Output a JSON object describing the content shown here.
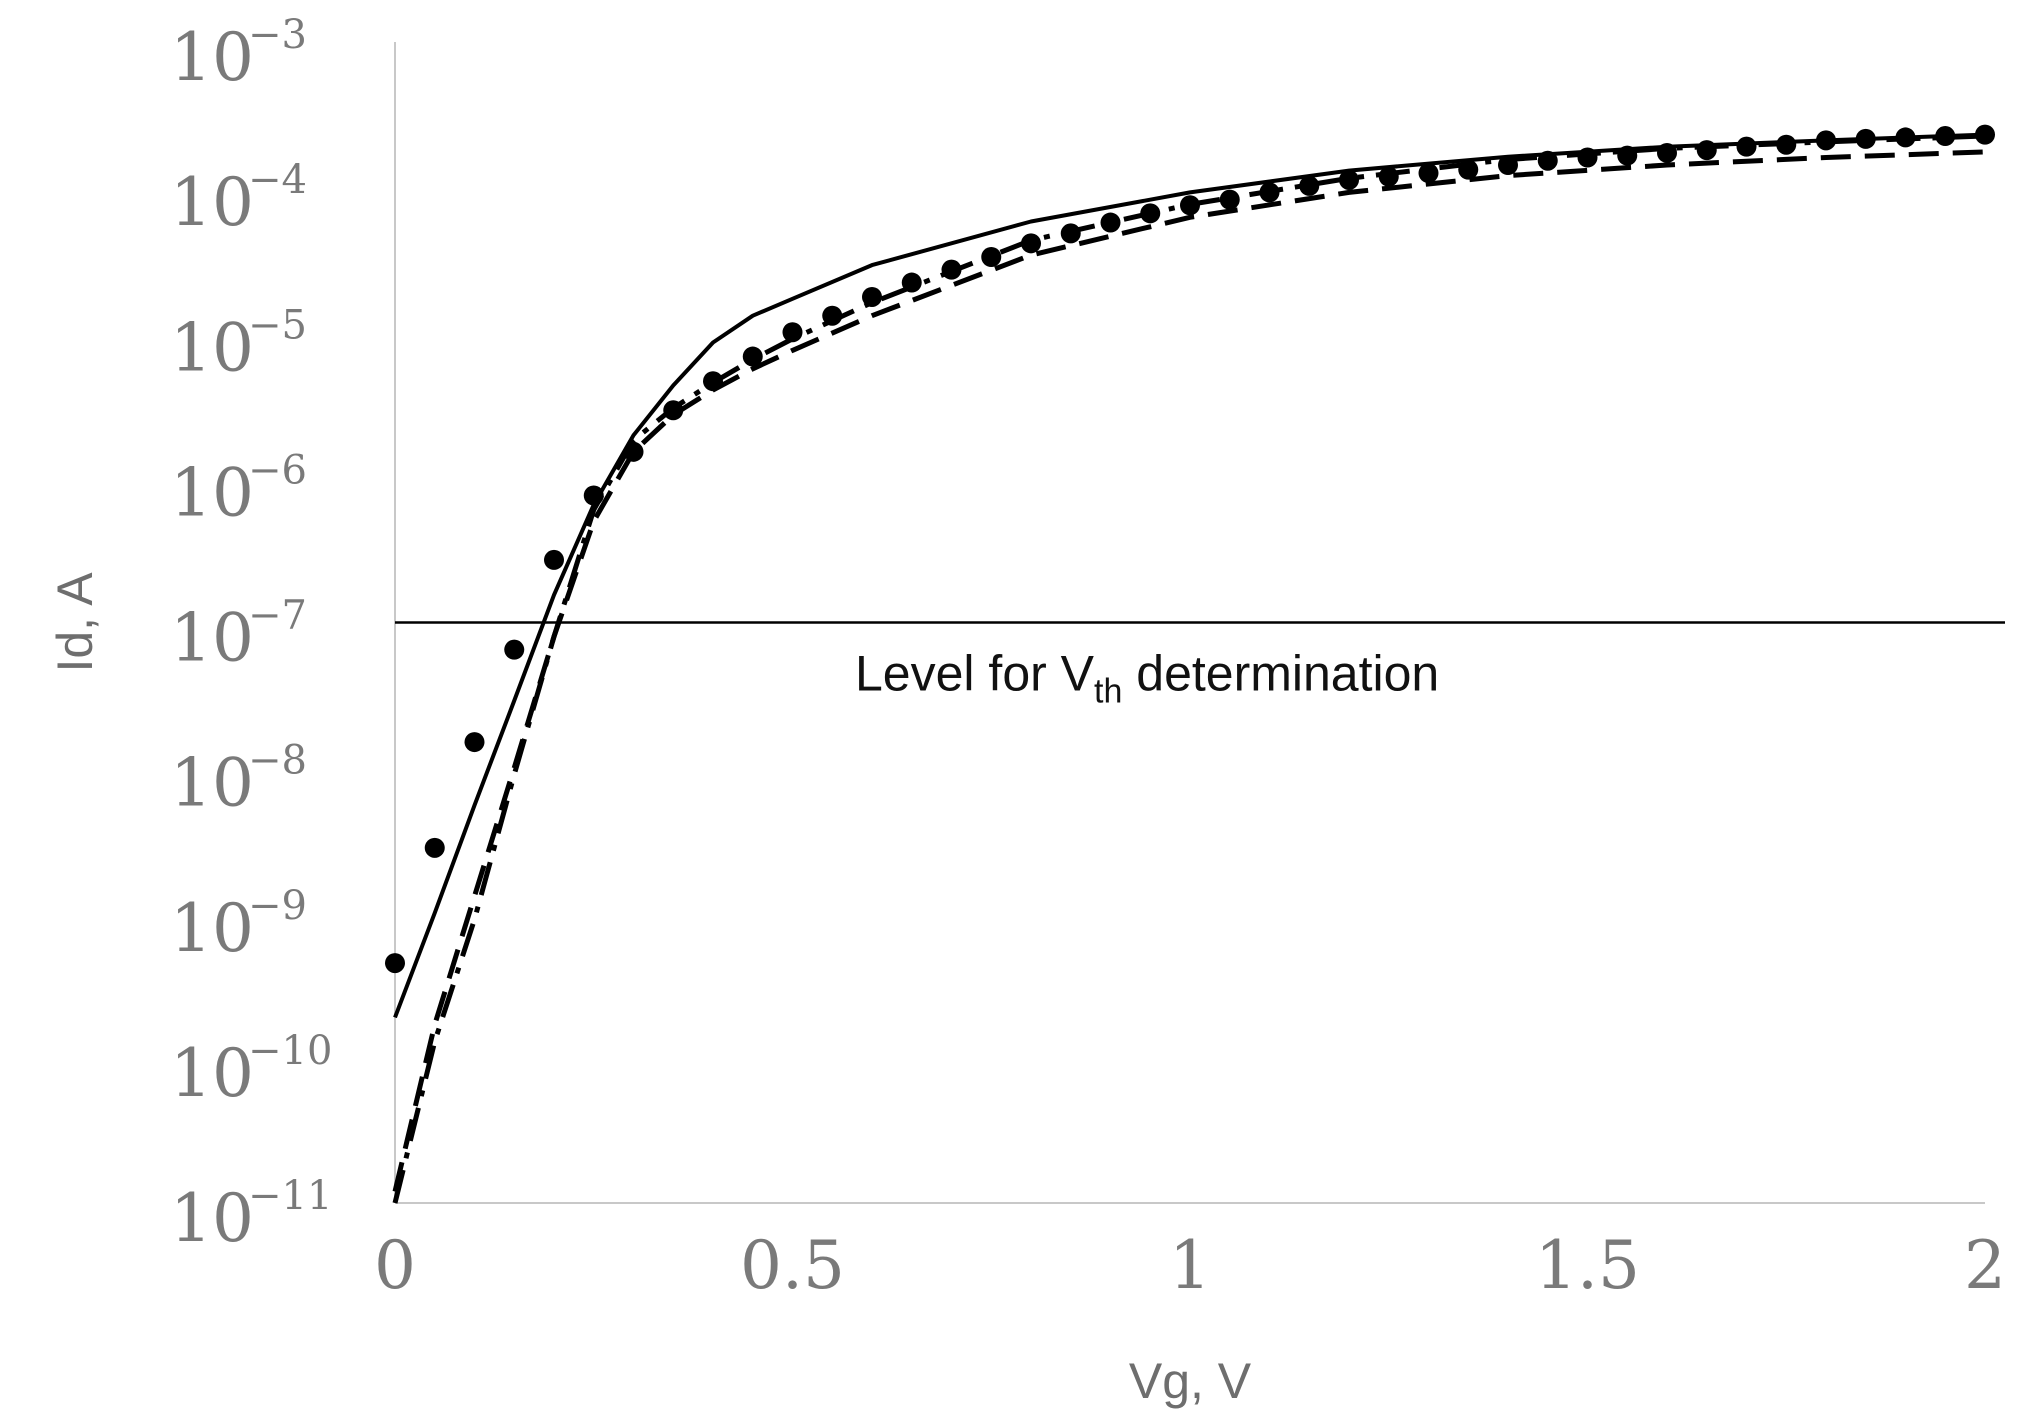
{
  "chart_data": {
    "type": "line",
    "title": "",
    "xlabel": "Vg, V",
    "ylabel": "Id, A",
    "yscale": "log",
    "xlim": [
      0,
      2
    ],
    "ylim": [
      1e-11,
      0.001
    ],
    "x_ticks": [
      "0",
      "0.5",
      "1",
      "1.5",
      "2"
    ],
    "x_tick_values": [
      0,
      0.5,
      1,
      1.5,
      2
    ],
    "y_ticks": [
      {
        "base": "10",
        "exp": "−3",
        "value": 0.001
      },
      {
        "base": "10",
        "exp": "−4",
        "value": 0.0001
      },
      {
        "base": "10",
        "exp": "−5",
        "value": 1e-05
      },
      {
        "base": "10",
        "exp": "−6",
        "value": 1e-06
      },
      {
        "base": "10",
        "exp": "−7",
        "value": 1e-07
      },
      {
        "base": "10",
        "exp": "−8",
        "value": 1e-08
      },
      {
        "base": "10",
        "exp": "−9",
        "value": 1e-09
      },
      {
        "base": "10",
        "exp": "−10",
        "value": 1e-10
      },
      {
        "base": "10",
        "exp": "−11",
        "value": 1e-11
      }
    ],
    "grid": false,
    "annotations": [
      {
        "text_main": "Level for V",
        "text_sub": "th",
        "text_after": " determination",
        "y": 1e-07
      }
    ],
    "reference_lines": [
      {
        "orientation": "horizontal",
        "y": 1e-07
      }
    ],
    "series": [
      {
        "name": "solid",
        "style": "solid",
        "x": [
          0,
          0.05,
          0.1,
          0.15,
          0.2,
          0.25,
          0.3,
          0.35,
          0.4,
          0.45,
          0.5,
          0.6,
          0.8,
          1.0,
          1.2,
          1.4,
          1.6,
          1.8,
          2.0
        ],
        "y": [
          1.9e-10,
          1e-09,
          5.5e-09,
          2.9e-08,
          1.55e-07,
          6.5e-07,
          1.95e-06,
          4.3e-06,
          8.5e-06,
          1.3e-05,
          1.7e-05,
          2.9e-05,
          5.8e-05,
          9.2e-05,
          0.00013,
          0.000162,
          0.00019,
          0.00021,
          0.00023
        ]
      },
      {
        "name": "dotted markers",
        "style": "dots",
        "x": [
          0,
          0.05,
          0.1,
          0.15,
          0.2,
          0.25,
          0.3,
          0.35,
          0.4,
          0.45,
          0.5,
          0.55,
          0.6,
          0.65,
          0.7,
          0.75,
          0.8,
          0.85,
          0.9,
          0.95,
          1.0,
          1.05,
          1.1,
          1.15,
          1.2,
          1.25,
          1.3,
          1.35,
          1.4,
          1.45,
          1.5,
          1.55,
          1.6,
          1.65,
          1.7,
          1.75,
          1.8,
          1.85,
          1.9,
          1.95,
          2.0
        ],
        "y": [
          4.5e-10,
          2.8e-09,
          1.5e-08,
          6.5e-08,
          2.7e-07,
          7.5e-07,
          1.5e-06,
          2.9e-06,
          4.6e-06,
          6.8e-06,
          1e-05,
          1.3e-05,
          1.75e-05,
          2.2e-05,
          2.7e-05,
          3.3e-05,
          4.1e-05,
          4.8e-05,
          5.7e-05,
          6.6e-05,
          7.5e-05,
          8.2e-05,
          9.2e-05,
          0.000102,
          0.000112,
          0.000118,
          0.000125,
          0.000132,
          0.000142,
          0.000152,
          0.00016,
          0.000165,
          0.000172,
          0.00018,
          0.00019,
          0.000196,
          0.00021,
          0.000215,
          0.00022,
          0.000225,
          0.00023
        ]
      },
      {
        "name": "dash-dot",
        "style": "dashdot",
        "x": [
          0,
          0.05,
          0.1,
          0.15,
          0.2,
          0.25,
          0.3,
          0.35,
          0.4,
          0.45,
          0.5,
          0.6,
          0.8,
          1.0,
          1.2,
          1.4,
          1.6,
          1.8,
          2.0
        ],
        "y": [
          1e-11,
          1.3e-10,
          9e-10,
          9e-09,
          8e-08,
          6e-07,
          1.8e-06,
          3e-06,
          4.5e-06,
          6.5e-06,
          9e-06,
          1.6e-05,
          4.3e-05,
          7.6e-05,
          0.000115,
          0.000155,
          0.000185,
          0.000205,
          0.000225
        ]
      },
      {
        "name": "dashed",
        "style": "dashed",
        "x": [
          0,
          0.05,
          0.1,
          0.15,
          0.2,
          0.25,
          0.3,
          0.35,
          0.4,
          0.45,
          0.5,
          0.6,
          0.8,
          1.0,
          1.2,
          1.4,
          1.6,
          1.8,
          2.0
        ],
        "y": [
          1.2e-11,
          1.7e-10,
          1.3e-09,
          1e-08,
          8e-08,
          5e-07,
          1.5e-06,
          2.7e-06,
          4e-06,
          5.6e-06,
          7.5e-06,
          1.3e-05,
          3.4e-05,
          6.2e-05,
          9.2e-05,
          0.00012,
          0.000142,
          0.00016,
          0.000175
        ]
      }
    ]
  }
}
